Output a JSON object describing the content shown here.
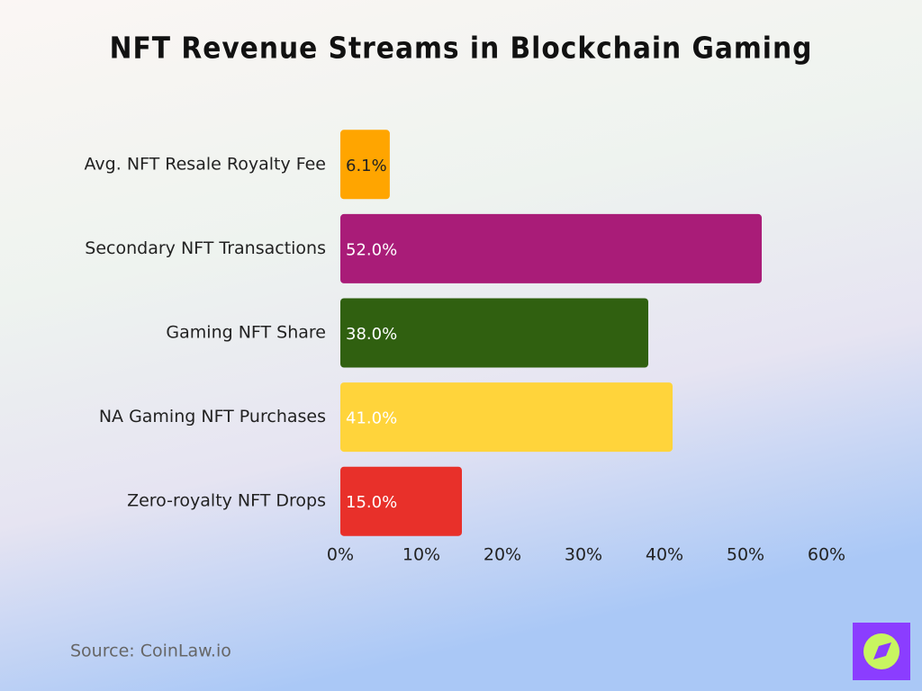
{
  "chart_data": {
    "type": "hbar",
    "title": "NFT Revenue Streams in Blockchain Gaming",
    "categories": [
      "Avg. NFT Resale Royalty Fee",
      "Secondary NFT Transactions",
      "Gaming NFT Share",
      "NA Gaming NFT Purchases",
      "Zero-royalty NFT Drops"
    ],
    "values": [
      6.1,
      52.0,
      38.0,
      41.0,
      15.0
    ],
    "value_labels": [
      "6.1%",
      "52.0%",
      "38.0%",
      "41.0%",
      "15.0%"
    ],
    "colors": [
      "#ffa500",
      "#a91c78",
      "#306010",
      "#ffd43b",
      "#e8302a"
    ],
    "value_label_colors": [
      "#222222",
      "#ffffff",
      "#ffffff",
      "#ffffff",
      "#ffffff"
    ],
    "xlim": [
      0,
      60
    ],
    "xticks": [
      {
        "value": 0,
        "label": "0%"
      },
      {
        "value": 10,
        "label": "10%"
      },
      {
        "value": 20,
        "label": "20%"
      },
      {
        "value": 30,
        "label": "30%"
      },
      {
        "value": 40,
        "label": "40%"
      },
      {
        "value": 50,
        "label": "50%"
      },
      {
        "value": 60,
        "label": "60%"
      }
    ],
    "grid": false,
    "source": "Source: CoinLaw.io"
  }
}
